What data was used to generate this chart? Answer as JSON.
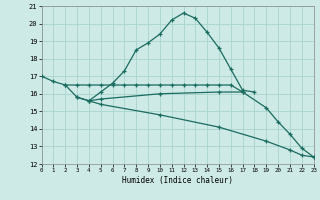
{
  "xlabel": "Humidex (Indice chaleur)",
  "bg_color": "#ceeae6",
  "grid_color": "#aad4ce",
  "line_color": "#1a6b60",
  "line1_x": [
    0,
    1,
    2,
    3,
    4,
    5,
    6,
    7,
    8,
    9,
    10,
    11,
    12,
    13,
    14,
    15,
    16,
    17,
    18
  ],
  "line1_y": [
    17.0,
    16.7,
    16.5,
    15.8,
    15.6,
    16.1,
    16.6,
    17.3,
    18.5,
    18.9,
    19.4,
    20.2,
    20.6,
    20.3,
    19.5,
    18.6,
    17.4,
    16.2,
    16.1
  ],
  "line2_x": [
    2,
    3,
    4,
    5,
    6,
    7,
    8,
    9,
    10,
    11,
    12,
    13,
    14,
    15,
    16,
    17
  ],
  "line2_y": [
    16.5,
    16.5,
    16.5,
    16.5,
    16.5,
    16.5,
    16.5,
    16.5,
    16.5,
    16.5,
    16.5,
    16.5,
    16.5,
    16.5,
    16.5,
    16.1
  ],
  "line3_x": [
    3,
    4,
    5,
    10,
    15,
    19,
    21,
    22,
    23
  ],
  "line3_y": [
    15.8,
    15.6,
    15.4,
    14.8,
    14.1,
    13.3,
    12.8,
    12.5,
    12.4
  ],
  "line4_x": [
    4,
    5,
    10,
    15,
    17,
    19,
    20,
    21,
    22,
    23
  ],
  "line4_y": [
    15.6,
    15.7,
    16.0,
    16.1,
    16.1,
    15.2,
    14.4,
    13.7,
    12.9,
    12.4
  ],
  "ylim": [
    12,
    21
  ],
  "xlim": [
    0,
    23
  ],
  "yticks": [
    12,
    13,
    14,
    15,
    16,
    17,
    18,
    19,
    20,
    21
  ],
  "xticks": [
    0,
    1,
    2,
    3,
    4,
    5,
    6,
    7,
    8,
    9,
    10,
    11,
    12,
    13,
    14,
    15,
    16,
    17,
    18,
    19,
    20,
    21,
    22,
    23
  ]
}
